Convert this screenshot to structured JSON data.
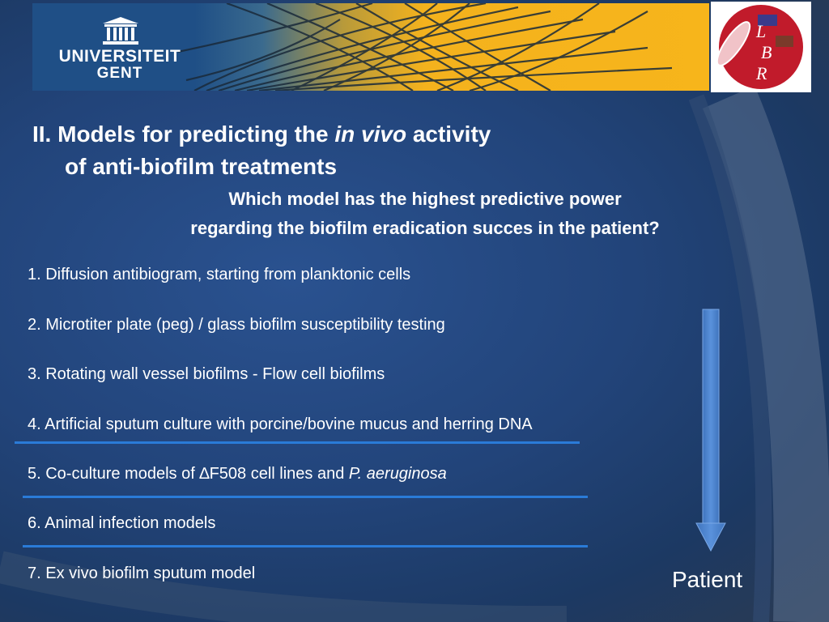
{
  "header": {
    "university_line1": "UNIVERSITEIT",
    "university_line2": "GENT",
    "lab_logo_letters": [
      "L",
      "B",
      "R"
    ],
    "banner_color": "#f7b51b"
  },
  "title": {
    "prefix": "II. Models for predicting the ",
    "italic": "in vivo",
    "suffix": " activity",
    "line2": "of anti-biofilm treatments"
  },
  "subtitle": {
    "line1": "Which model has the highest predictive power",
    "line2": "regarding the biofilm eradication succes in the patient?"
  },
  "items": [
    {
      "text": "1. Diffusion antibiogram, starting from planktonic cells"
    },
    {
      "text": "2. Microtiter plate (peg) / glass biofilm susceptibility testing"
    },
    {
      "text": "3. Rotating wall vessel biofilms - Flow cell biofilms"
    },
    {
      "text": "4. Artificial sputum culture with porcine/bovine mucus and herring DNA"
    },
    {
      "prefix": "5. Co-culture models of ",
      "delta": "∆",
      "middle": "F508 cell lines and ",
      "italic": "P. aeruginosa"
    },
    {
      "text": "6. Animal infection models"
    },
    {
      "text": "7. Ex vivo biofilm sputum model"
    }
  ],
  "arrow": {
    "label": "Patient",
    "color": "#4f86d0"
  },
  "separator_color": "#2a7bd8"
}
